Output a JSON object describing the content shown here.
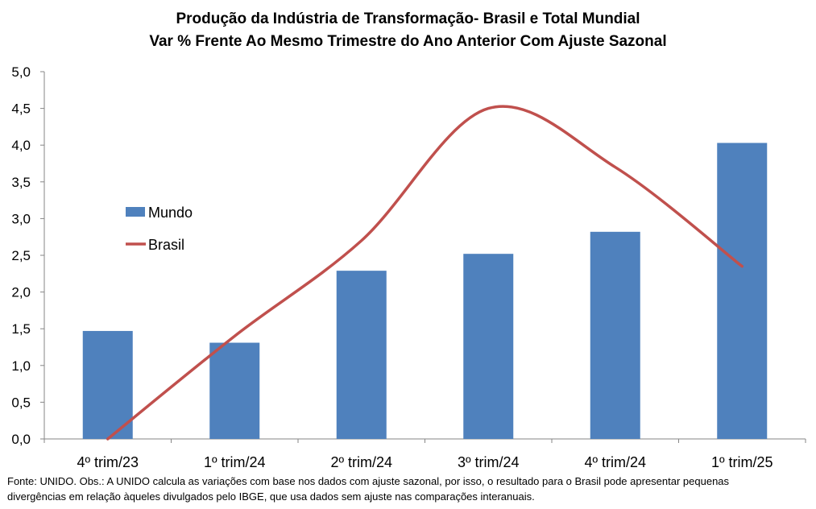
{
  "chart_data": {
    "type": "bar",
    "title": "Produção da Indústria de Transformação- Brasil e Total Mundial",
    "subtitle": "Var % Frente Ao Mesmo Trimestre do Ano Anterior Com Ajuste Sazonal",
    "categories": [
      "4º trim/23",
      "1º trim/24",
      "2º trim/24",
      "3º trim/24",
      "4º trim/24",
      "1º trim/25"
    ],
    "series": [
      {
        "name": "Mundo",
        "type": "bar",
        "color": "#4F81BD",
        "values": [
          1.47,
          1.31,
          2.29,
          2.52,
          2.82,
          4.03
        ]
      },
      {
        "name": "Brasil",
        "type": "line",
        "smooth": true,
        "color": "#C0504D",
        "values": [
          0.0,
          1.4,
          2.7,
          4.5,
          3.7,
          2.35
        ]
      }
    ],
    "ylim": [
      0,
      5
    ],
    "yticks": [
      "0,0",
      "0,5",
      "1,0",
      "1,5",
      "2,0",
      "2,5",
      "3,0",
      "3,5",
      "4,0",
      "4,5",
      "5,0"
    ],
    "xlabel": "",
    "ylabel": "",
    "grid": false,
    "legend_position": "left"
  },
  "footnote": {
    "line1": "Fonte: UNIDO. Obs.: A UNIDO calcula as variações com base nos dados com ajuste sazonal, por isso, o resultado para o Brasil pode apresentar pequenas",
    "line2": "divergências em relação àqueles divulgados pelo IBGE, que usa dados sem ajuste nas comparações interanuais."
  }
}
